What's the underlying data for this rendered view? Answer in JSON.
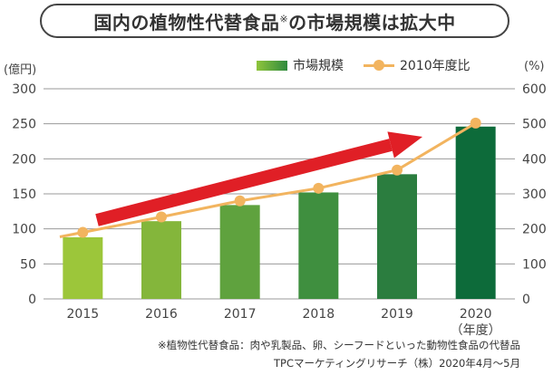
{
  "title": "国内の植物性代替食品",
  "title_mark": "※",
  "title_suffix": "の市場規模は拡大中",
  "chart_data": {
    "type": "bar",
    "categories": [
      "2015",
      "2016",
      "2017",
      "2018",
      "2019",
      "2020"
    ],
    "x_suffix_label": "（年度）",
    "series": [
      {
        "name": "市場規模",
        "type": "bar",
        "axis": "left",
        "values": [
          88,
          111,
          134,
          152,
          178,
          246
        ],
        "colors": [
          "#9cc63a",
          "#84b63b",
          "#5fa23e",
          "#3f8f3f",
          "#2b7d3f",
          "#0d6b3a"
        ]
      },
      {
        "name": "2010年度比",
        "type": "line",
        "axis": "right",
        "values": [
          190,
          234,
          280,
          316,
          368,
          502
        ],
        "color": "#f2b45f"
      }
    ],
    "ylabel_left": "(億円)",
    "ylabel_right": "(%)",
    "ylim_left": [
      0,
      300
    ],
    "ylim_right": [
      0,
      600
    ],
    "yticks_left": [
      "0",
      "50",
      "100",
      "150",
      "200",
      "250",
      "300"
    ],
    "yticks_right": [
      "0",
      "100",
      "200",
      "300",
      "400",
      "500",
      "600"
    ],
    "grid": true,
    "legend_position": "top-right",
    "annotation": "red upward trend arrow"
  },
  "footnote": "※植物性代替食品：肉や乳製品、卵、シーフードといった動物性食品の代替品",
  "source": "TPCマーケティングリサーチ（株）2020年4月〜5月"
}
